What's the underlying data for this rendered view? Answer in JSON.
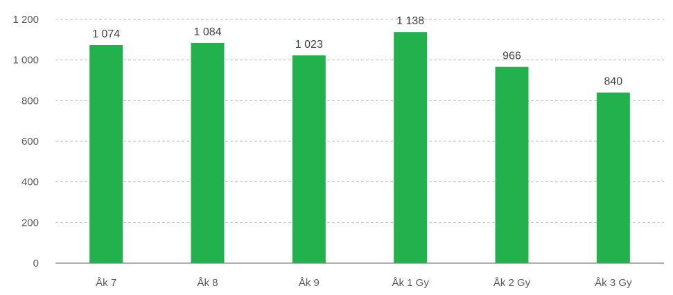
{
  "chart_data": {
    "type": "bar",
    "title": "",
    "xlabel": "",
    "ylabel": "",
    "categories": [
      "Åk 7",
      "Åk 8",
      "Åk 9",
      "Åk 1 Gy",
      "Åk 2 Gy",
      "Åk 3 Gy"
    ],
    "values": [
      1074,
      1084,
      1023,
      1138,
      966,
      840
    ],
    "value_labels": [
      "1 074",
      "1 084",
      "1 023",
      "1 138",
      "966",
      "840"
    ],
    "ylim": [
      0,
      1200
    ],
    "yticks": [
      0,
      200,
      400,
      600,
      800,
      1000,
      1200
    ],
    "ytick_labels": [
      "0",
      "200",
      "400",
      "600",
      "800",
      "1 000",
      "1 200"
    ],
    "grid": true,
    "grid_style": "dashed horizontal",
    "legend": "none",
    "bar_color": "#22b14c"
  }
}
